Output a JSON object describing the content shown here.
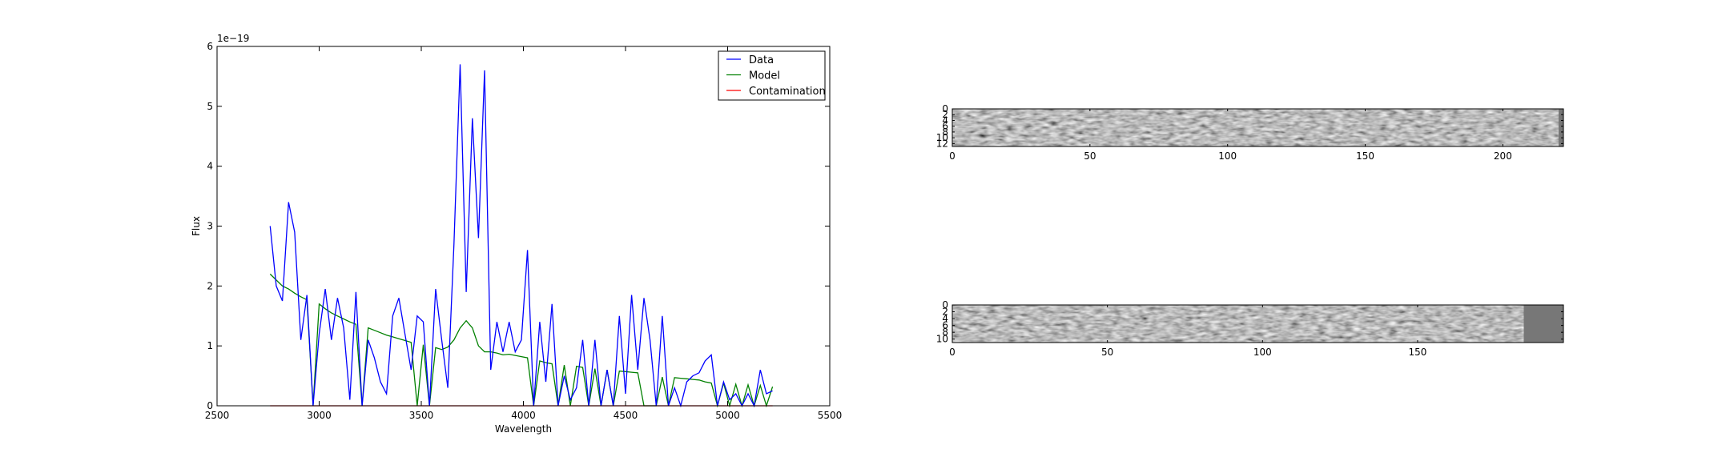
{
  "chart_data": [
    {
      "type": "line",
      "x_label": "Wavelength",
      "y_label": "Flux",
      "offset_text": "1e−19",
      "xlim": [
        2500,
        5500
      ],
      "xticks": [
        2500,
        3000,
        3500,
        4000,
        4500,
        5000,
        5500
      ],
      "ylim": [
        0,
        6
      ],
      "yticks": [
        0,
        1,
        2,
        3,
        4,
        5,
        6
      ],
      "legend": "upper right",
      "grid": false,
      "x": [
        2760,
        2790,
        2820,
        2850,
        2880,
        2910,
        2940,
        2970,
        3000,
        3030,
        3060,
        3090,
        3120,
        3150,
        3180,
        3210,
        3240,
        3270,
        3300,
        3330,
        3360,
        3390,
        3420,
        3450,
        3480,
        3510,
        3540,
        3570,
        3600,
        3630,
        3660,
        3690,
        3720,
        3750,
        3780,
        3810,
        3840,
        3870,
        3900,
        3930,
        3960,
        3990,
        4020,
        4050,
        4080,
        4110,
        4140,
        4170,
        4200,
        4230,
        4260,
        4290,
        4320,
        4350,
        4380,
        4410,
        4440,
        4470,
        4500,
        4530,
        4560,
        4590,
        4620,
        4650,
        4680,
        4710,
        4740,
        4770,
        4800,
        4830,
        4860,
        4890,
        4920,
        4950,
        4980,
        5010,
        5040,
        5070,
        5100,
        5130,
        5160,
        5190,
        5220
      ],
      "series": [
        {
          "name": "Data",
          "color": "#0000ff",
          "values": [
            3.0,
            2.0,
            1.75,
            3.4,
            2.9,
            1.1,
            1.85,
            0.0,
            1.2,
            1.95,
            1.1,
            1.8,
            1.3,
            0.1,
            1.9,
            0.0,
            1.1,
            0.8,
            0.4,
            0.2,
            1.5,
            1.8,
            1.2,
            0.6,
            1.5,
            1.4,
            0.0,
            1.95,
            1.1,
            0.3,
            2.7,
            5.7,
            1.9,
            4.8,
            2.8,
            5.6,
            0.6,
            1.4,
            0.9,
            1.4,
            0.9,
            1.1,
            2.6,
            0.0,
            1.4,
            0.4,
            1.7,
            0.0,
            0.5,
            0.1,
            0.3,
            1.1,
            0.0,
            1.1,
            0.0,
            0.6,
            0.0,
            1.5,
            0.2,
            1.85,
            0.6,
            1.8,
            1.1,
            0.0,
            1.5,
            0.0,
            0.3,
            0.0,
            0.4,
            0.5,
            0.55,
            0.75,
            0.85,
            0.0,
            0.4,
            0.1,
            0.2,
            0.0,
            0.2,
            0.0,
            0.6,
            0.2,
            0.25
          ]
        },
        {
          "name": "Model",
          "color": "#008000",
          "values": [
            2.2,
            2.1,
            2.0,
            1.95,
            1.88,
            1.82,
            1.77,
            0.0,
            1.7,
            1.62,
            1.55,
            1.5,
            1.45,
            1.4,
            1.36,
            0.0,
            1.3,
            1.26,
            1.22,
            1.18,
            1.15,
            1.12,
            1.09,
            1.06,
            0.0,
            1.02,
            0.0,
            0.97,
            0.94,
            0.98,
            1.1,
            1.3,
            1.42,
            1.3,
            1.0,
            0.9,
            0.9,
            0.88,
            0.85,
            0.86,
            0.84,
            0.82,
            0.8,
            0.0,
            0.75,
            0.72,
            0.7,
            0.0,
            0.68,
            0.0,
            0.66,
            0.64,
            0.0,
            0.62,
            0.0,
            0.6,
            0.0,
            0.58,
            0.57,
            0.56,
            0.55,
            0.0,
            0.0,
            0.0,
            0.48,
            0.0,
            0.47,
            0.46,
            0.45,
            0.44,
            0.43,
            0.4,
            0.38,
            0.0,
            0.38,
            0.0,
            0.36,
            0.0,
            0.35,
            0.0,
            0.34,
            0.0,
            0.32
          ]
        },
        {
          "name": "Contamination",
          "color": "#ff0000",
          "values": [
            0,
            0,
            0,
            0,
            0,
            0,
            0,
            0,
            0,
            0,
            0,
            0,
            0,
            0,
            0,
            0,
            0,
            0,
            0,
            0,
            0,
            0,
            0,
            0,
            0,
            0,
            0,
            0,
            0,
            0,
            0,
            0,
            0,
            0,
            0,
            0,
            0,
            0,
            0,
            0,
            0,
            0,
            0,
            0,
            0,
            0,
            0,
            0,
            0,
            0,
            0,
            0,
            0,
            0,
            0,
            0,
            0,
            0,
            0,
            0,
            0,
            0,
            0,
            0,
            0,
            0,
            0,
            0,
            0,
            0,
            0,
            0,
            0,
            0,
            0,
            0,
            0,
            0,
            0,
            0,
            0,
            0,
            0
          ]
        }
      ]
    },
    {
      "type": "image",
      "xlim": [
        0,
        222
      ],
      "xticks": [
        0,
        50,
        100,
        150,
        200
      ],
      "ylim": [
        13,
        0
      ],
      "yticks": [
        0,
        2,
        4,
        6,
        8,
        10,
        12
      ]
    },
    {
      "type": "image",
      "xlim": [
        0,
        197
      ],
      "xticks": [
        0,
        50,
        100,
        150
      ],
      "ylim": [
        11,
        0
      ],
      "yticks": [
        0,
        2,
        4,
        6,
        8,
        10
      ]
    }
  ]
}
